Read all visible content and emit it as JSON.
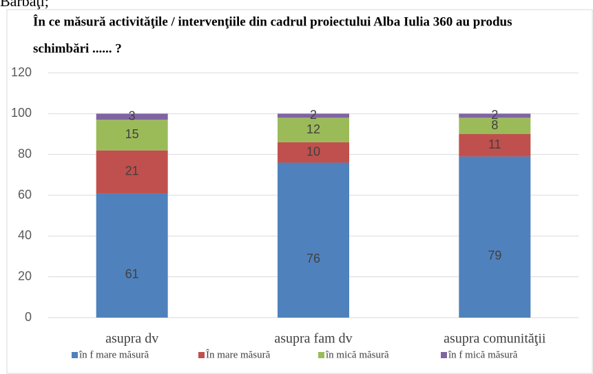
{
  "page_fragment": "Bărbaţi;",
  "chart_data": {
    "type": "stacked-bar",
    "title": "În ce măsură activităţile  / intervenţiile  din cadrul proiectului Alba Iulia 360  au produs",
    "title_line2": "schimbări ...... ?",
    "categories": [
      "asupra dv",
      "asupra fam dv",
      "asupra comunităţii"
    ],
    "series": [
      {
        "name": "în f mare măsură",
        "color": "#4f81bd",
        "values": [
          61,
          76,
          79
        ]
      },
      {
        "name": "În mare măsură",
        "color": "#c0504d",
        "values": [
          21,
          10,
          11
        ]
      },
      {
        "name": "în mică măsură",
        "color": "#9bbb59",
        "values": [
          15,
          12,
          8
        ]
      },
      {
        "name": "în f mică măsură",
        "color": "#8064a2",
        "values": [
          3,
          2,
          2
        ]
      }
    ],
    "ylim": [
      0,
      120
    ],
    "yticks": [
      0,
      20,
      40,
      60,
      80,
      100,
      120
    ],
    "grid": true,
    "legend": "bottom"
  }
}
